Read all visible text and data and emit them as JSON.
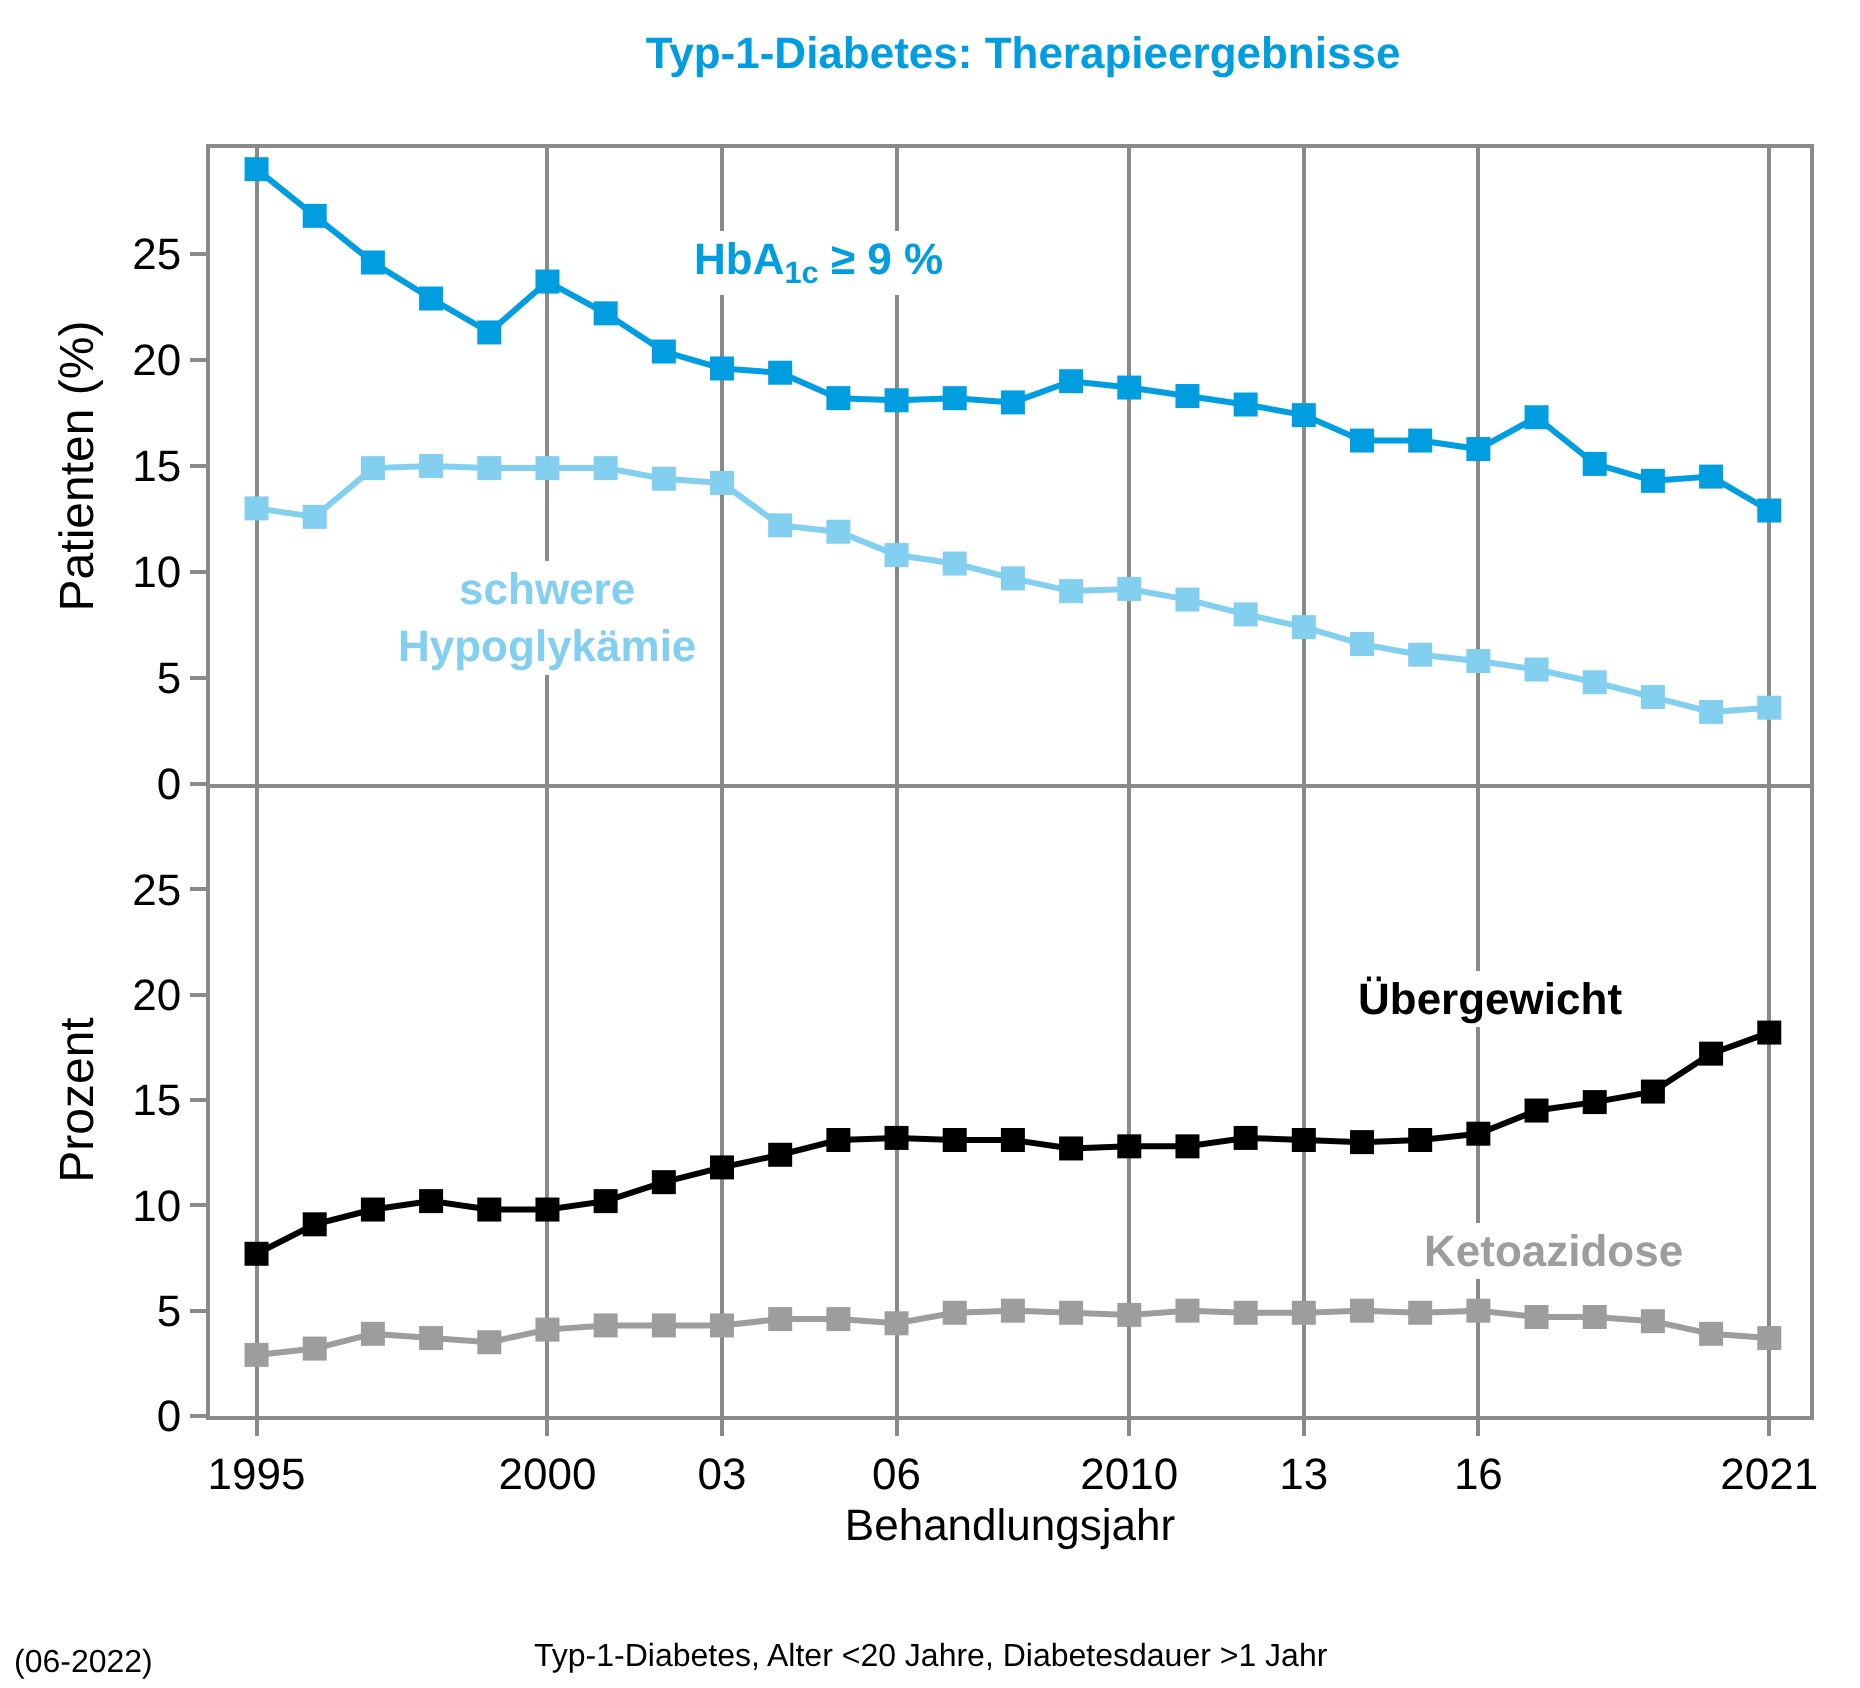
{
  "chart_data": [
    {
      "type": "line",
      "title": "Typ-1-Diabetes: Therapieergebnisse",
      "ylabel": "Patienten (%)",
      "x": [
        1995,
        1996,
        1997,
        1998,
        1999,
        2000,
        2001,
        2002,
        2003,
        2004,
        2005,
        2006,
        2007,
        2008,
        2009,
        2010,
        2011,
        2012,
        2013,
        2014,
        2015,
        2016,
        2017,
        2018,
        2019,
        2020,
        2021
      ],
      "series": [
        {
          "name": "HbA$_{1c}$ ≥ 9 %",
          "color": "#009ee0",
          "values": [
            29.0,
            26.8,
            24.6,
            22.9,
            21.3,
            23.7,
            22.2,
            20.4,
            19.6,
            19.4,
            18.2,
            18.1,
            18.2,
            18.0,
            19.0,
            18.7,
            18.3,
            17.9,
            17.4,
            16.2,
            16.2,
            15.8,
            17.3,
            15.1,
            14.3,
            14.5,
            12.9
          ]
        },
        {
          "name": "schwere Hypoglykämie",
          "color": "#83cfef",
          "values": [
            13.0,
            12.6,
            14.9,
            15.0,
            14.9,
            14.9,
            14.9,
            14.4,
            14.2,
            12.2,
            11.9,
            10.8,
            10.4,
            9.7,
            9.1,
            9.2,
            8.7,
            8.0,
            7.4,
            6.6,
            6.1,
            5.8,
            5.4,
            4.8,
            4.1,
            3.4,
            3.6
          ]
        }
      ],
      "xlim": [
        1994.2,
        2021.7
      ],
      "xticks": [
        {
          "value": 1995,
          "label": null
        },
        {
          "value": 2000,
          "label": null
        },
        {
          "value": 2003,
          "label": null
        },
        {
          "value": 2006,
          "label": null
        },
        {
          "value": 2010,
          "label": null
        },
        {
          "value": 2013,
          "label": null
        },
        {
          "value": 2016,
          "label": null
        },
        {
          "value": 2021,
          "label": null
        }
      ],
      "ylim": [
        0,
        30
      ],
      "yticks": [
        0,
        5,
        10,
        15,
        20,
        25
      ],
      "grid": "x",
      "marker": "square",
      "tick_labels": "y"
    },
    {
      "type": "line",
      "xlabel": "Behandlungsjahr",
      "ylabel": "Prozent",
      "x": [
        1995,
        1996,
        1997,
        1998,
        1999,
        2000,
        2001,
        2002,
        2003,
        2004,
        2005,
        2006,
        2007,
        2008,
        2009,
        2010,
        2011,
        2012,
        2013,
        2014,
        2015,
        2016,
        2017,
        2018,
        2019,
        2020,
        2021
      ],
      "series": [
        {
          "name": "Übergewicht",
          "color": "#000000",
          "values": [
            7.7,
            9.1,
            9.8,
            10.2,
            9.8,
            9.8,
            10.2,
            11.1,
            11.8,
            12.4,
            13.1,
            13.2,
            13.1,
            13.1,
            12.7,
            12.8,
            12.8,
            13.2,
            13.1,
            13.0,
            13.1,
            13.4,
            14.5,
            14.9,
            15.4,
            17.2,
            18.2
          ]
        },
        {
          "name": "Ketoazidose",
          "color": "#9d9d9e",
          "values": [
            2.9,
            3.2,
            3.9,
            3.7,
            3.5,
            4.1,
            4.3,
            4.3,
            4.3,
            4.6,
            4.6,
            4.4,
            4.9,
            5.0,
            4.9,
            4.8,
            5.0,
            4.9,
            4.9,
            5.0,
            4.9,
            5.0,
            4.7,
            4.7,
            4.5,
            3.9,
            3.7
          ]
        }
      ],
      "xlim": [
        1994.2,
        2021.7
      ],
      "xticks": [
        {
          "value": 1995,
          "label": "1995"
        },
        {
          "value": 2000,
          "label": "2000"
        },
        {
          "value": 2003,
          "label": "03"
        },
        {
          "value": 2006,
          "label": "06"
        },
        {
          "value": 2010,
          "label": "2010"
        },
        {
          "value": 2013,
          "label": "13"
        },
        {
          "value": 2016,
          "label": "16"
        },
        {
          "value": 2021,
          "label": "2021"
        }
      ],
      "ylim": [
        0,
        30
      ],
      "yticks": [
        0,
        5,
        10,
        15,
        20,
        25
      ],
      "grid": "x",
      "marker": "square",
      "annotations": [
        "(06-2022)",
        "Typ-1-Diabetes, Alter <20 Jahre, Diabetesdauer >1 Jahr"
      ]
    }
  ]
}
